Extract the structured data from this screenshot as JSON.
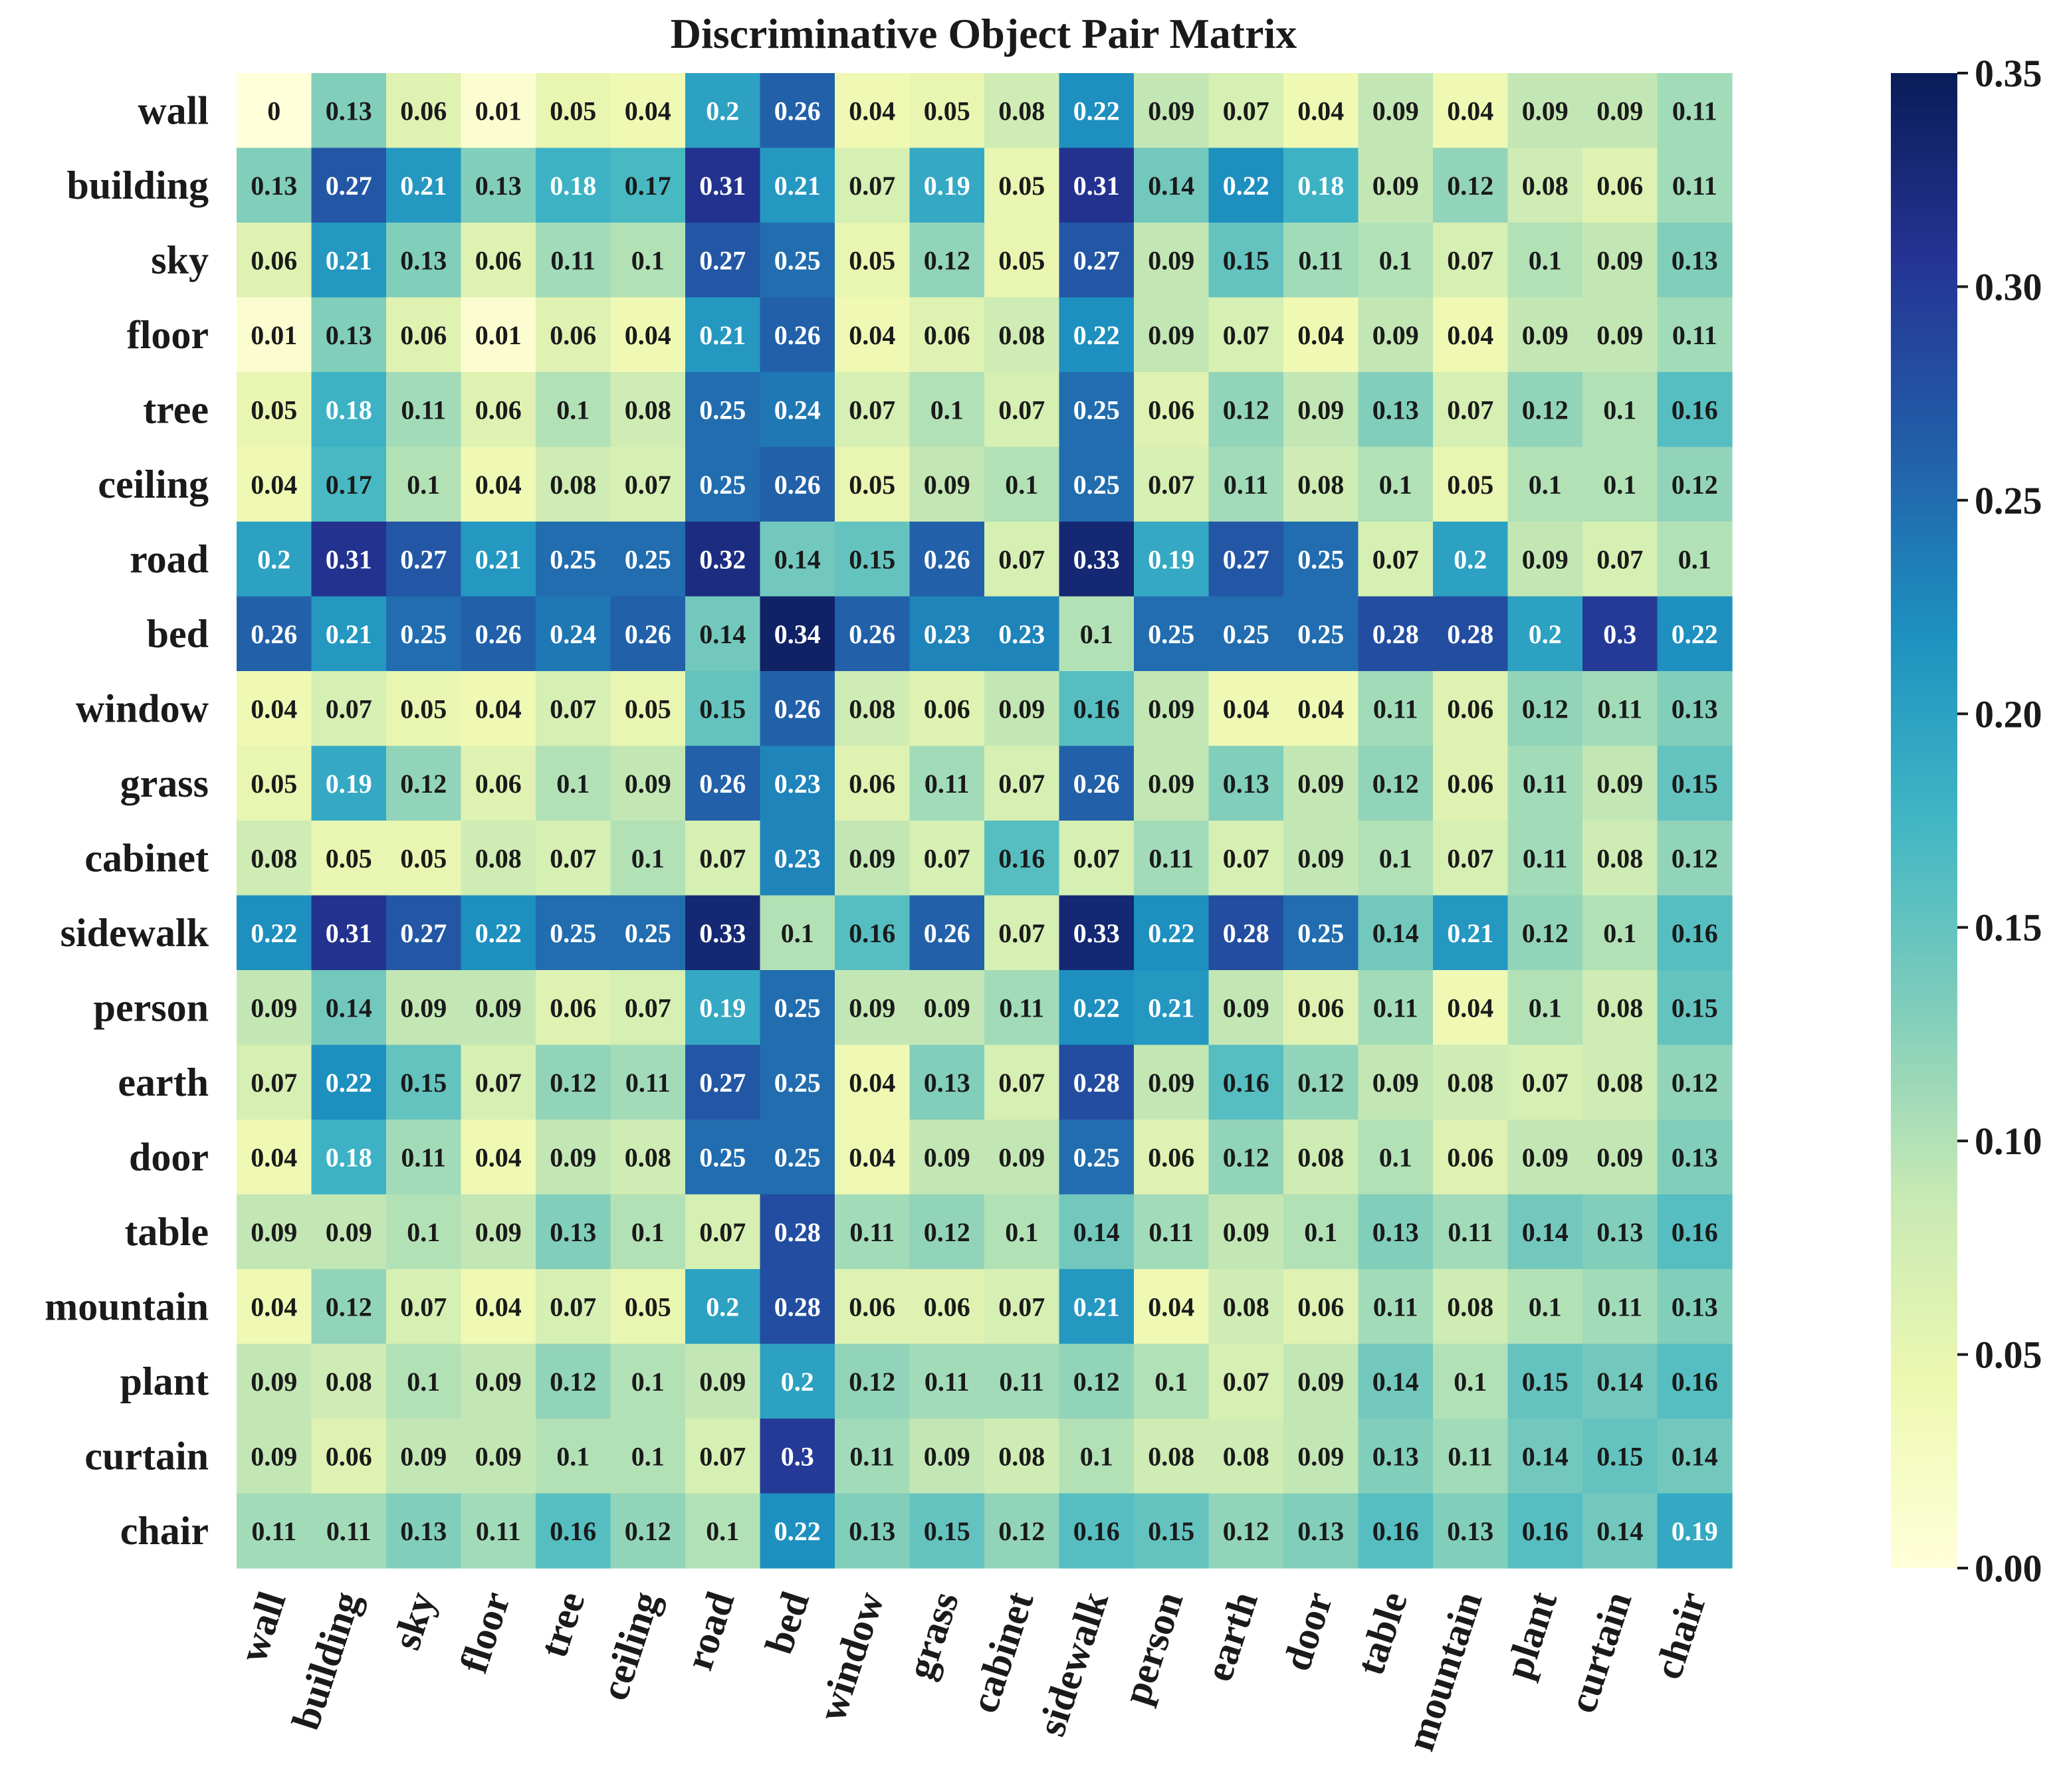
{
  "chart_data": {
    "type": "heatmap",
    "title": "Discriminative Object Pair Matrix",
    "xlabel": "",
    "ylabel": "",
    "labels": [
      "wall",
      "building",
      "sky",
      "floor",
      "tree",
      "ceiling",
      "road",
      "bed",
      "window",
      "grass",
      "cabinet",
      "sidewalk",
      "person",
      "earth",
      "door",
      "table",
      "mountain",
      "plant",
      "curtain",
      "chair"
    ],
    "values": [
      [
        0,
        0.13,
        0.06,
        0.01,
        0.05,
        0.04,
        0.2,
        0.26,
        0.04,
        0.05,
        0.08,
        0.22,
        0.09,
        0.07,
        0.04,
        0.09,
        0.04,
        0.09,
        0.09,
        0.11
      ],
      [
        0.13,
        0.27,
        0.21,
        0.13,
        0.18,
        0.17,
        0.31,
        0.21,
        0.07,
        0.19,
        0.05,
        0.31,
        0.14,
        0.22,
        0.18,
        0.09,
        0.12,
        0.08,
        0.06,
        0.11
      ],
      [
        0.06,
        0.21,
        0.13,
        0.06,
        0.11,
        0.1,
        0.27,
        0.25,
        0.05,
        0.12,
        0.05,
        0.27,
        0.09,
        0.15,
        0.11,
        0.1,
        0.07,
        0.1,
        0.09,
        0.13
      ],
      [
        0.01,
        0.13,
        0.06,
        0.01,
        0.06,
        0.04,
        0.21,
        0.26,
        0.04,
        0.06,
        0.08,
        0.22,
        0.09,
        0.07,
        0.04,
        0.09,
        0.04,
        0.09,
        0.09,
        0.11
      ],
      [
        0.05,
        0.18,
        0.11,
        0.06,
        0.1,
        0.08,
        0.25,
        0.24,
        0.07,
        0.1,
        0.07,
        0.25,
        0.06,
        0.12,
        0.09,
        0.13,
        0.07,
        0.12,
        0.1,
        0.16
      ],
      [
        0.04,
        0.17,
        0.1,
        0.04,
        0.08,
        0.07,
        0.25,
        0.26,
        0.05,
        0.09,
        0.1,
        0.25,
        0.07,
        0.11,
        0.08,
        0.1,
        0.05,
        0.1,
        0.1,
        0.12
      ],
      [
        0.2,
        0.31,
        0.27,
        0.21,
        0.25,
        0.25,
        0.32,
        0.14,
        0.15,
        0.26,
        0.07,
        0.33,
        0.19,
        0.27,
        0.25,
        0.07,
        0.2,
        0.09,
        0.07,
        0.1
      ],
      [
        0.26,
        0.21,
        0.25,
        0.26,
        0.24,
        0.26,
        0.14,
        0.34,
        0.26,
        0.23,
        0.23,
        0.1,
        0.25,
        0.25,
        0.25,
        0.28,
        0.28,
        0.2,
        0.3,
        0.22
      ],
      [
        0.04,
        0.07,
        0.05,
        0.04,
        0.07,
        0.05,
        0.15,
        0.26,
        0.08,
        0.06,
        0.09,
        0.16,
        0.09,
        0.04,
        0.04,
        0.11,
        0.06,
        0.12,
        0.11,
        0.13
      ],
      [
        0.05,
        0.19,
        0.12,
        0.06,
        0.1,
        0.09,
        0.26,
        0.23,
        0.06,
        0.11,
        0.07,
        0.26,
        0.09,
        0.13,
        0.09,
        0.12,
        0.06,
        0.11,
        0.09,
        0.15
      ],
      [
        0.08,
        0.05,
        0.05,
        0.08,
        0.07,
        0.1,
        0.07,
        0.23,
        0.09,
        0.07,
        0.16,
        0.07,
        0.11,
        0.07,
        0.09,
        0.1,
        0.07,
        0.11,
        0.08,
        0.12
      ],
      [
        0.22,
        0.31,
        0.27,
        0.22,
        0.25,
        0.25,
        0.33,
        0.1,
        0.16,
        0.26,
        0.07,
        0.33,
        0.22,
        0.28,
        0.25,
        0.14,
        0.21,
        0.12,
        0.1,
        0.16
      ],
      [
        0.09,
        0.14,
        0.09,
        0.09,
        0.06,
        0.07,
        0.19,
        0.25,
        0.09,
        0.09,
        0.11,
        0.22,
        0.21,
        0.09,
        0.06,
        0.11,
        0.04,
        0.1,
        0.08,
        0.15
      ],
      [
        0.07,
        0.22,
        0.15,
        0.07,
        0.12,
        0.11,
        0.27,
        0.25,
        0.04,
        0.13,
        0.07,
        0.28,
        0.09,
        0.16,
        0.12,
        0.09,
        0.08,
        0.07,
        0.08,
        0.12
      ],
      [
        0.04,
        0.18,
        0.11,
        0.04,
        0.09,
        0.08,
        0.25,
        0.25,
        0.04,
        0.09,
        0.09,
        0.25,
        0.06,
        0.12,
        0.08,
        0.1,
        0.06,
        0.09,
        0.09,
        0.13
      ],
      [
        0.09,
        0.09,
        0.1,
        0.09,
        0.13,
        0.1,
        0.07,
        0.28,
        0.11,
        0.12,
        0.1,
        0.14,
        0.11,
        0.09,
        0.1,
        0.13,
        0.11,
        0.14,
        0.13,
        0.16
      ],
      [
        0.04,
        0.12,
        0.07,
        0.04,
        0.07,
        0.05,
        0.2,
        0.28,
        0.06,
        0.06,
        0.07,
        0.21,
        0.04,
        0.08,
        0.06,
        0.11,
        0.08,
        0.1,
        0.11,
        0.13
      ],
      [
        0.09,
        0.08,
        0.1,
        0.09,
        0.12,
        0.1,
        0.09,
        0.2,
        0.12,
        0.11,
        0.11,
        0.12,
        0.1,
        0.07,
        0.09,
        0.14,
        0.1,
        0.15,
        0.14,
        0.16
      ],
      [
        0.09,
        0.06,
        0.09,
        0.09,
        0.1,
        0.1,
        0.07,
        0.3,
        0.11,
        0.09,
        0.08,
        0.1,
        0.08,
        0.08,
        0.09,
        0.13,
        0.11,
        0.14,
        0.15,
        0.14
      ],
      [
        0.11,
        0.11,
        0.13,
        0.11,
        0.16,
        0.12,
        0.1,
        0.22,
        0.13,
        0.15,
        0.12,
        0.16,
        0.15,
        0.12,
        0.13,
        0.16,
        0.13,
        0.16,
        0.14,
        0.19
      ]
    ],
    "colorbar": {
      "colormap": "YlGnBu",
      "range": [
        0,
        0.35
      ],
      "ticks": [
        "0.00",
        "0.05",
        "0.10",
        "0.15",
        "0.20",
        "0.25",
        "0.30",
        "0.35"
      ]
    }
  }
}
